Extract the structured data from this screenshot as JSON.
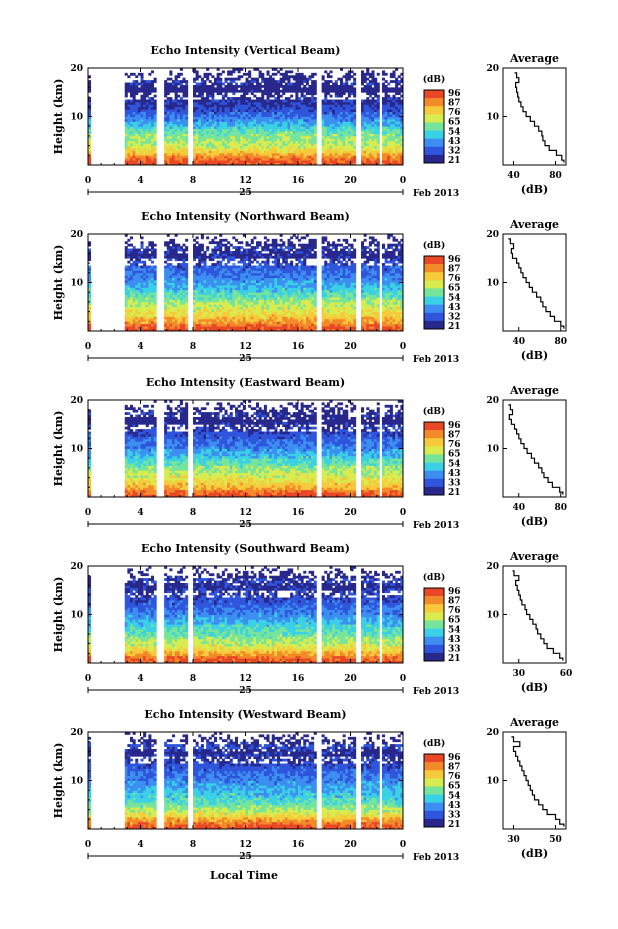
{
  "figure": {
    "bottom_xlabel": "Local Time",
    "date_day": "25",
    "date_suffix": "Feb 2013"
  },
  "colorbar": {
    "unit": "(dB)",
    "ticks": [
      "96",
      "87",
      "76",
      "65",
      "54",
      "43",
      "32",
      "21"
    ],
    "ticks_eastward": [
      "96",
      "87",
      "76",
      "65",
      "54",
      "43",
      "33",
      "21"
    ],
    "ticks_southward": [
      "96",
      "87",
      "76",
      "65",
      "54",
      "43",
      "33",
      "21"
    ],
    "ticks_westward": [
      "96",
      "87",
      "76",
      "65",
      "54",
      "43",
      "33",
      "21"
    ],
    "colors": [
      "#28288c",
      "#2f55dc",
      "#3c8ef0",
      "#3ad0e6",
      "#76e49a",
      "#d8ec50",
      "#f6ca3a",
      "#f38a2a",
      "#e84826"
    ]
  },
  "chart_data": [
    {
      "type": "heatmap",
      "title": "Echo Intensity (Vertical Beam)",
      "ylabel": "Height (km)",
      "xlabel": "Local Time",
      "x_ticks": [
        "0",
        "4",
        "8",
        "12",
        "16",
        "20",
        "0"
      ],
      "y_ticks": [
        "20",
        "10"
      ],
      "ylim": [
        0,
        20
      ],
      "xlim": [
        0,
        24
      ],
      "color_scale": [
        21,
        96
      ],
      "data_gaps_hours": [
        [
          0.2,
          2.8
        ],
        [
          5.3,
          5.7
        ],
        [
          7.6,
          8.0
        ],
        [
          17.4,
          17.9
        ],
        [
          20.5,
          20.9
        ],
        [
          22.1,
          22.4
        ]
      ],
      "average_profile": {
        "title": "Average",
        "xlabel": "(dB)",
        "x_ticks": [
          "40",
          "80"
        ],
        "y_ticks": [
          "20",
          "10"
        ],
        "xlim": [
          30,
          90
        ],
        "ylim": [
          0,
          20
        ],
        "height_km": [
          0.5,
          1,
          2,
          3,
          4,
          5,
          6,
          7,
          8,
          9,
          10,
          11,
          12,
          13,
          14,
          15,
          16,
          17,
          18,
          19
        ],
        "power_db": [
          88,
          86,
          81,
          74,
          70,
          68,
          67,
          64,
          60,
          56,
          52,
          49,
          47,
          45,
          44,
          43,
          42,
          45,
          43,
          41
        ]
      }
    },
    {
      "type": "heatmap",
      "title": "Echo Intensity (Northward Beam)",
      "ylabel": "Height (km)",
      "xlabel": "Local Time",
      "x_ticks": [
        "0",
        "4",
        "8",
        "12",
        "16",
        "20",
        "0"
      ],
      "y_ticks": [
        "20",
        "10"
      ],
      "ylim": [
        0,
        20
      ],
      "xlim": [
        0,
        24
      ],
      "color_scale": [
        21,
        96
      ],
      "data_gaps_hours": [
        [
          0.2,
          2.8
        ],
        [
          5.3,
          5.7
        ],
        [
          7.6,
          8.0
        ],
        [
          17.4,
          17.9
        ],
        [
          20.5,
          20.9
        ],
        [
          22.1,
          22.4
        ]
      ],
      "average_profile": {
        "title": "Average",
        "xlabel": "(dB)",
        "x_ticks": [
          "40",
          "80"
        ],
        "y_ticks": [
          "20",
          "10"
        ],
        "xlim": [
          25,
          85
        ],
        "ylim": [
          0,
          20
        ],
        "height_km": [
          0.5,
          1,
          2,
          3,
          4,
          5,
          6,
          7,
          8,
          9,
          10,
          11,
          12,
          13,
          14,
          15,
          16,
          17,
          18,
          19
        ],
        "power_db": [
          83,
          80,
          74,
          70,
          66,
          63,
          61,
          57,
          53,
          50,
          47,
          44,
          42,
          40,
          38,
          34,
          33,
          35,
          32,
          30
        ]
      }
    },
    {
      "type": "heatmap",
      "title": "Echo Intensity (Eastward Beam)",
      "ylabel": "Height (km)",
      "xlabel": "Local Time",
      "x_ticks": [
        "0",
        "4",
        "8",
        "12",
        "16",
        "20",
        "0"
      ],
      "y_ticks": [
        "20",
        "10"
      ],
      "ylim": [
        0,
        20
      ],
      "xlim": [
        0,
        24
      ],
      "color_scale": [
        21,
        96
      ],
      "data_gaps_hours": [
        [
          0.2,
          2.8
        ],
        [
          5.3,
          5.7
        ],
        [
          7.6,
          8.0
        ],
        [
          17.4,
          17.9
        ],
        [
          20.5,
          20.9
        ],
        [
          22.1,
          22.4
        ]
      ],
      "average_profile": {
        "title": "Average",
        "xlabel": "(dB)",
        "x_ticks": [
          "40",
          "80"
        ],
        "y_ticks": [
          "20",
          "10"
        ],
        "xlim": [
          25,
          85
        ],
        "ylim": [
          0,
          20
        ],
        "height_km": [
          0.5,
          1,
          2,
          3,
          4,
          5,
          6,
          7,
          8,
          9,
          10,
          11,
          12,
          13,
          14,
          15,
          16,
          17,
          18,
          19
        ],
        "power_db": [
          82,
          79,
          72,
          68,
          64,
          62,
          59,
          55,
          52,
          48,
          45,
          42,
          40,
          38,
          36,
          33,
          31,
          34,
          32,
          30
        ]
      }
    },
    {
      "type": "heatmap",
      "title": "Echo Intensity (Southward Beam)",
      "ylabel": "Height (km)",
      "xlabel": "Local Time",
      "x_ticks": [
        "0",
        "4",
        "8",
        "12",
        "16",
        "20",
        "0"
      ],
      "y_ticks": [
        "20",
        "10"
      ],
      "ylim": [
        0,
        20
      ],
      "xlim": [
        0,
        24
      ],
      "color_scale": [
        21,
        96
      ],
      "data_gaps_hours": [
        [
          0.2,
          2.8
        ],
        [
          5.3,
          5.7
        ],
        [
          7.6,
          8.0
        ],
        [
          17.4,
          17.9
        ],
        [
          20.5,
          20.9
        ],
        [
          22.1,
          22.4
        ]
      ],
      "average_profile": {
        "title": "Average",
        "xlabel": "(dB)",
        "x_ticks": [
          "30",
          "60"
        ],
        "y_ticks": [
          "20",
          "10"
        ],
        "xlim": [
          20,
          60
        ],
        "ylim": [
          0,
          20
        ],
        "height_km": [
          0.5,
          1,
          2,
          3,
          4,
          5,
          6,
          7,
          8,
          9,
          10,
          11,
          12,
          13,
          14,
          15,
          16,
          17,
          18,
          19
        ],
        "power_db": [
          58,
          56,
          52,
          48,
          46,
          44,
          42,
          41,
          39,
          37,
          35,
          34,
          32,
          31,
          30,
          29,
          28,
          30,
          27,
          26
        ]
      }
    },
    {
      "type": "heatmap",
      "title": "Echo Intensity (Westward Beam)",
      "ylabel": "Height (km)",
      "xlabel": "Local Time",
      "x_ticks": [
        "0",
        "4",
        "8",
        "12",
        "16",
        "20",
        "0"
      ],
      "y_ticks": [
        "20",
        "10"
      ],
      "ylim": [
        0,
        20
      ],
      "xlim": [
        0,
        24
      ],
      "color_scale": [
        21,
        96
      ],
      "data_gaps_hours": [
        [
          0.2,
          2.8
        ],
        [
          5.3,
          5.7
        ],
        [
          7.6,
          8.0
        ],
        [
          17.4,
          17.9
        ],
        [
          20.5,
          20.9
        ],
        [
          22.1,
          22.4
        ]
      ],
      "average_profile": {
        "title": "Average",
        "xlabel": "(dB)",
        "x_ticks": [
          "30",
          "50"
        ],
        "y_ticks": [
          "20",
          "10"
        ],
        "xlim": [
          25,
          55
        ],
        "ylim": [
          0,
          20
        ],
        "height_km": [
          0.5,
          1,
          2,
          3,
          4,
          5,
          6,
          7,
          8,
          9,
          10,
          11,
          12,
          13,
          14,
          15,
          16,
          17,
          18,
          19
        ],
        "power_db": [
          54,
          52,
          50,
          46,
          44,
          42,
          40,
          39,
          38,
          37,
          36,
          35,
          34,
          33,
          32,
          31,
          30,
          33,
          30,
          29
        ]
      }
    }
  ]
}
